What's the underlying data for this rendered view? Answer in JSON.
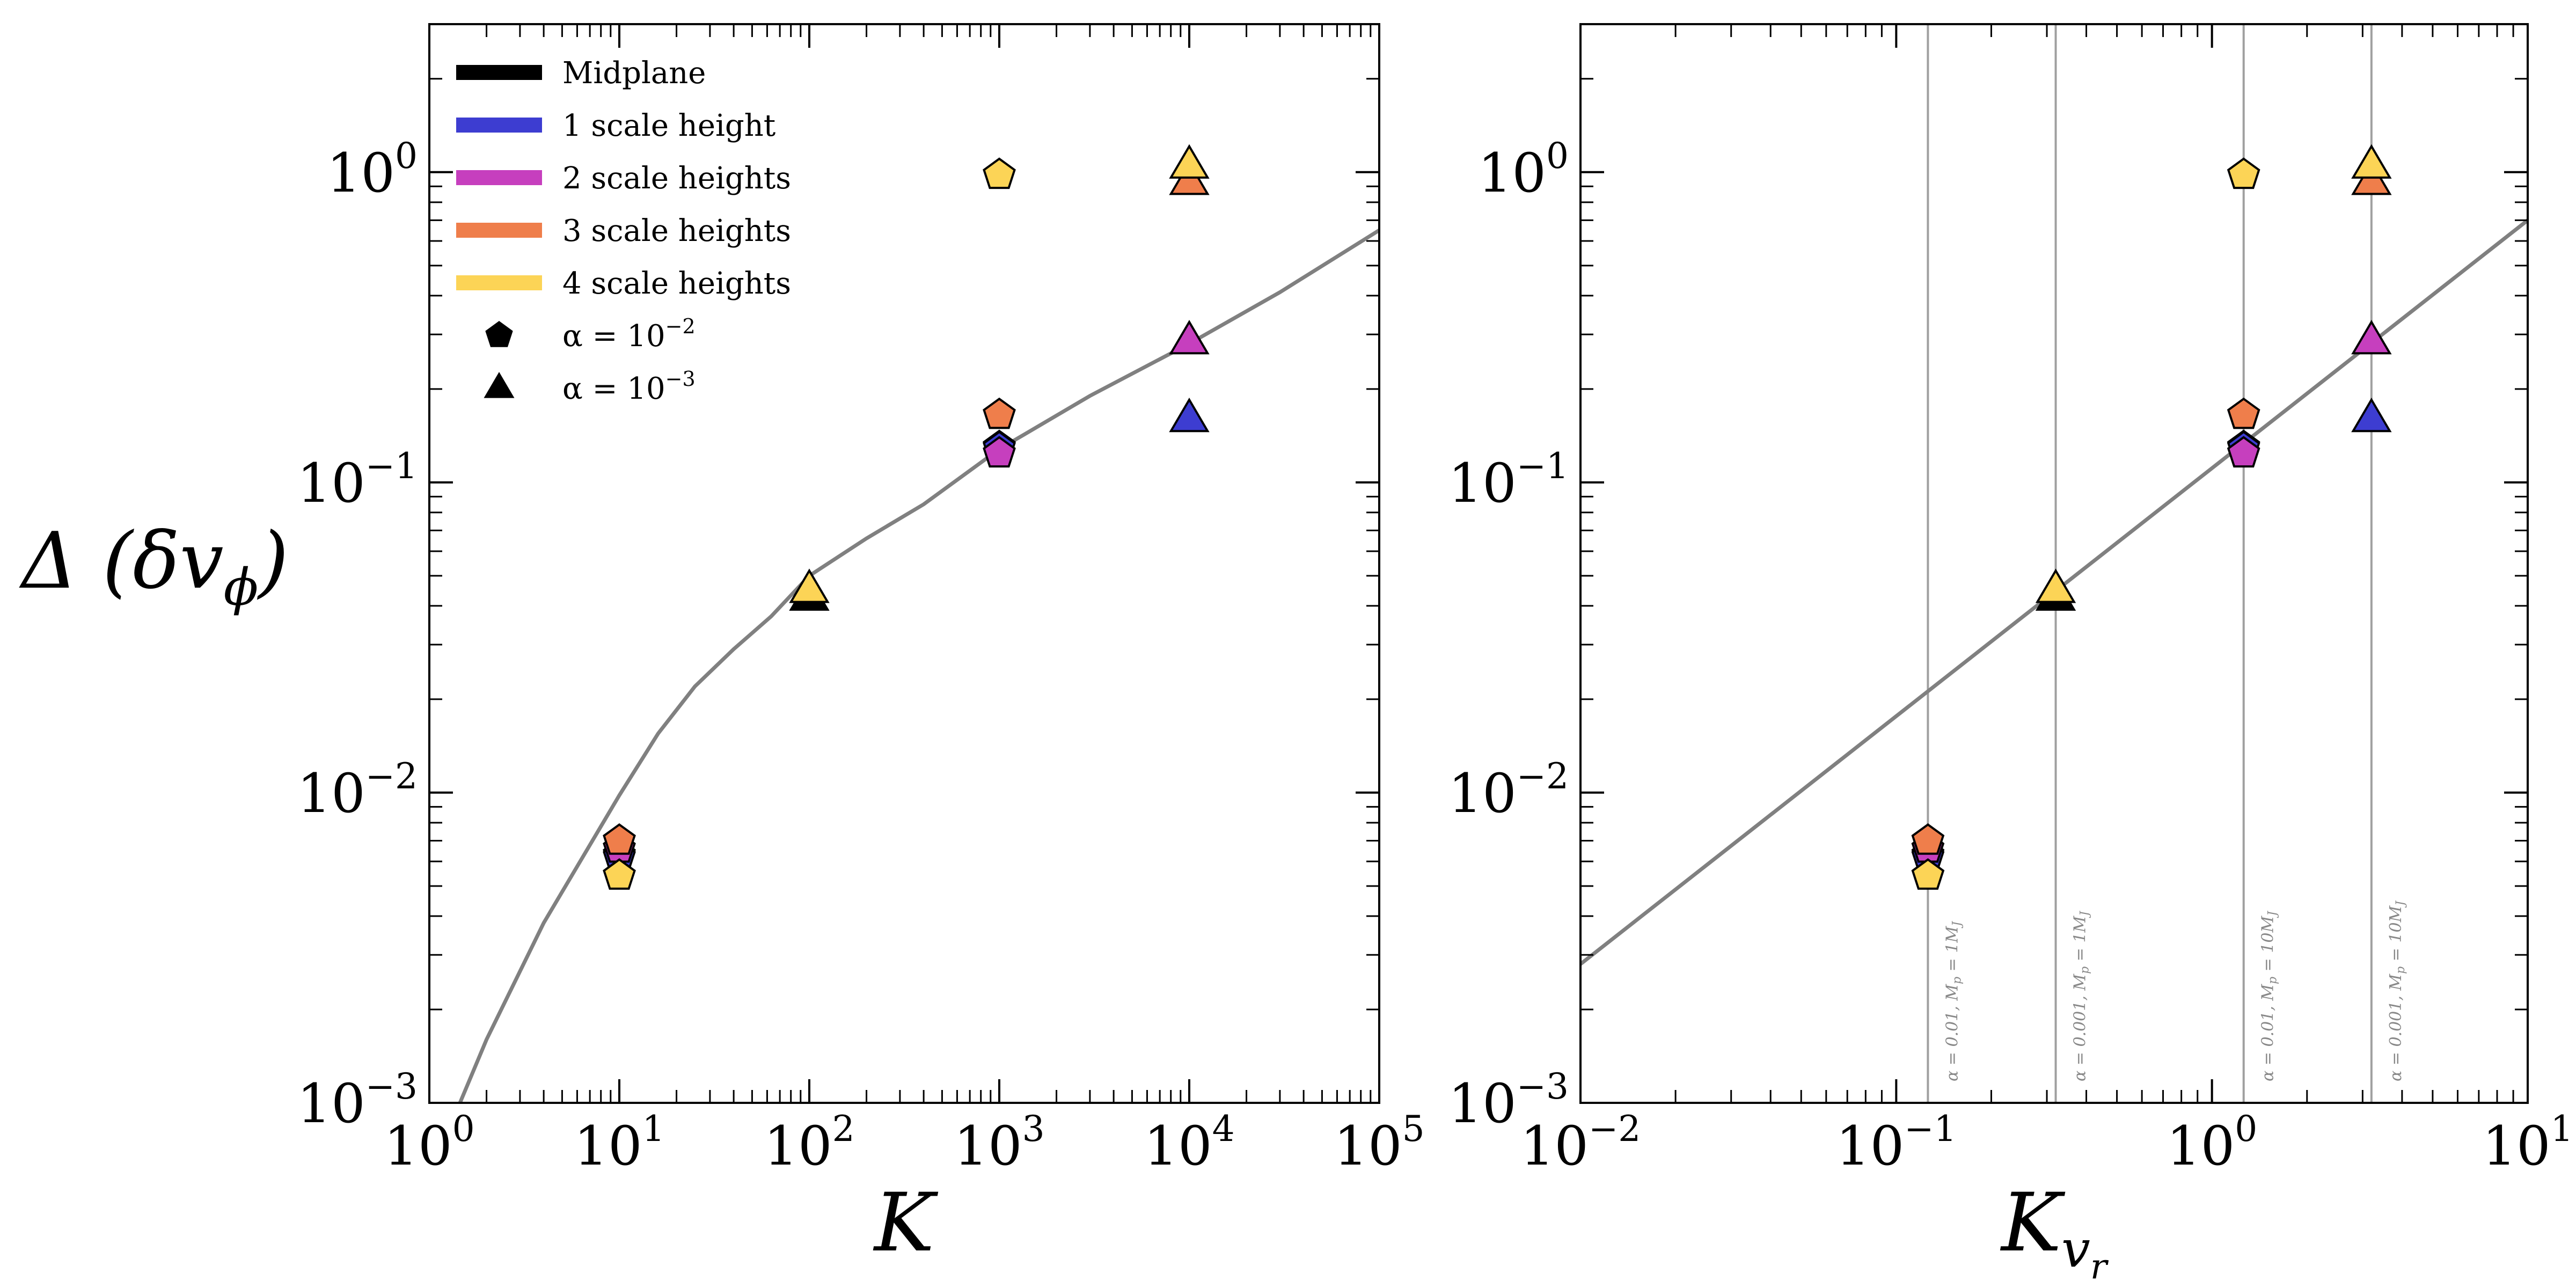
{
  "chart_data": [
    {
      "type": "scatter",
      "panel": "left",
      "xscale": "log",
      "yscale": "log",
      "xlim": [
        1,
        100000
      ],
      "ylim": [
        0.001,
        3
      ],
      "xticks": [
        {
          "base": "10",
          "exp": "0",
          "value": 1
        },
        {
          "base": "10",
          "exp": "1",
          "value": 10
        },
        {
          "base": "10",
          "exp": "2",
          "value": 100
        },
        {
          "base": "10",
          "exp": "3",
          "value": 1000
        },
        {
          "base": "10",
          "exp": "4",
          "value": 10000
        },
        {
          "base": "10",
          "exp": "5",
          "value": 100000
        }
      ],
      "yticks": [
        {
          "base": "10",
          "exp": "−3",
          "value": 0.001
        },
        {
          "base": "10",
          "exp": "−2",
          "value": 0.01
        },
        {
          "base": "10",
          "exp": "−1",
          "value": 0.1
        },
        {
          "base": "10",
          "exp": "0",
          "value": 1
        }
      ],
      "xlabel": "K",
      "ylabel": "Δ (δv",
      "ylabel_sub": "ϕ",
      "ylabel_close": ")",
      "legend": {
        "location": "upper-left",
        "entries": [
          {
            "kind": "line",
            "label": "Midplane",
            "color": "#000000"
          },
          {
            "kind": "line",
            "label": "1 scale height",
            "color": "#3d3dd1"
          },
          {
            "kind": "line",
            "label": "2 scale heights",
            "color": "#c63fbe"
          },
          {
            "kind": "line",
            "label": "3 scale heights",
            "color": "#ef7e4b"
          },
          {
            "kind": "line",
            "label": "4 scale heights",
            "color": "#fcd456"
          },
          {
            "kind": "pentagon",
            "label": "α  =  10",
            "sup": "−2",
            "color": "#000000"
          },
          {
            "kind": "triangle",
            "label": "α  =  10",
            "sup": "−3",
            "color": "#000000"
          }
        ]
      },
      "curve": {
        "name": "model-curve",
        "color": "#808080",
        "points": [
          [
            1.45,
            0.001
          ],
          [
            2,
            0.0016
          ],
          [
            4,
            0.0038
          ],
          [
            10,
            0.0098
          ],
          [
            16,
            0.0155
          ],
          [
            25,
            0.022
          ],
          [
            40,
            0.029
          ],
          [
            63,
            0.037
          ],
          [
            100,
            0.05
          ],
          [
            200,
            0.066
          ],
          [
            400,
            0.085
          ],
          [
            1000,
            0.128
          ],
          [
            3000,
            0.19
          ],
          [
            10000,
            0.28
          ],
          [
            30000,
            0.41
          ],
          [
            100000,
            0.65
          ]
        ]
      },
      "points": [
        {
          "name": "midplane-alpha-1e-2",
          "x": 10,
          "y": 0.0063,
          "marker": "pentagon",
          "color": "#000000"
        },
        {
          "name": "1h-alpha-1e-2",
          "x": 10,
          "y": 0.0062,
          "marker": "pentagon",
          "color": "#3d3dd1"
        },
        {
          "name": "2h-alpha-1e-2",
          "x": 10,
          "y": 0.0066,
          "marker": "pentagon",
          "color": "#c63fbe"
        },
        {
          "name": "3h-alpha-1e-2",
          "x": 10,
          "y": 0.007,
          "marker": "pentagon",
          "color": "#ef7e4b"
        },
        {
          "name": "4h-alpha-1e-2",
          "x": 10,
          "y": 0.0054,
          "marker": "pentagon",
          "color": "#fcd456"
        },
        {
          "name": "midplane-alpha-1e-3",
          "x": 100,
          "y": 0.0425,
          "marker": "triangle",
          "color": "#000000"
        },
        {
          "name": "4h-alpha-1e-3",
          "x": 100,
          "y": 0.045,
          "marker": "triangle",
          "color": "#fcd456"
        },
        {
          "name": "midplane-alpha-1e-2",
          "x": 1000,
          "y": 0.13,
          "marker": "pentagon",
          "color": "#000000"
        },
        {
          "name": "1h-alpha-1e-2",
          "x": 1000,
          "y": 0.129,
          "marker": "pentagon",
          "color": "#3d3dd1"
        },
        {
          "name": "3h-alpha-1e-2",
          "x": 1000,
          "y": 0.165,
          "marker": "pentagon",
          "color": "#ef7e4b"
        },
        {
          "name": "2h-alpha-1e-2",
          "x": 1000,
          "y": 0.124,
          "marker": "pentagon",
          "color": "#c63fbe"
        },
        {
          "name": "4h-alpha-1e-2",
          "x": 1000,
          "y": 0.98,
          "marker": "pentagon",
          "color": "#fcd456"
        },
        {
          "name": "1h-alpha-1e-3",
          "x": 10000,
          "y": 0.16,
          "marker": "triangle",
          "color": "#3d3dd1"
        },
        {
          "name": "2h-alpha-1e-3",
          "x": 10000,
          "y": 0.285,
          "marker": "triangle",
          "color": "#c63fbe"
        },
        {
          "name": "3h-alpha-1e-3",
          "x": 10000,
          "y": 0.93,
          "marker": "triangle",
          "color": "#ef7e4b"
        },
        {
          "name": "4h-alpha-1e-3",
          "x": 10000,
          "y": 1.05,
          "marker": "triangle",
          "color": "#fcd456"
        }
      ]
    },
    {
      "type": "scatter",
      "panel": "right",
      "xscale": "log",
      "yscale": "log",
      "xlim": [
        0.01,
        10
      ],
      "ylim": [
        0.001,
        3
      ],
      "xticks": [
        {
          "base": "10",
          "exp": "−2",
          "value": 0.01
        },
        {
          "base": "10",
          "exp": "−1",
          "value": 0.1
        },
        {
          "base": "10",
          "exp": "0",
          "value": 1
        },
        {
          "base": "10",
          "exp": "1",
          "value": 10
        }
      ],
      "yticks": [
        {
          "base": "10",
          "exp": "−3",
          "value": 0.001
        },
        {
          "base": "10",
          "exp": "−2",
          "value": 0.01
        },
        {
          "base": "10",
          "exp": "−1",
          "value": 0.1
        },
        {
          "base": "10",
          "exp": "0",
          "value": 1
        }
      ],
      "xlabel": "K",
      "xlabel_sub": "v",
      "xlabel_subsub": "r",
      "curve": {
        "name": "fit-line",
        "color": "#808080",
        "points": [
          [
            0.01,
            0.0028
          ],
          [
            10,
            0.7
          ]
        ]
      },
      "vlines": [
        {
          "x": 0.126,
          "label": "α = 0.01, M",
          "sub": "p",
          "label_end": " = 1M",
          "sub_end": "J"
        },
        {
          "x": 0.32,
          "label": "α = 0.001, M",
          "sub": "p",
          "label_end": " = 1M",
          "sub_end": "J"
        },
        {
          "x": 1.26,
          "label": "α = 0.01, M",
          "sub": "p",
          "label_end": " = 10M",
          "sub_end": "J"
        },
        {
          "x": 3.2,
          "label": "α = 0.001, M",
          "sub": "p",
          "label_end": " = 10M",
          "sub_end": "J"
        }
      ],
      "points": [
        {
          "name": "midplane-alpha-1e-2",
          "x": 0.126,
          "y": 0.0063,
          "marker": "pentagon",
          "color": "#000000"
        },
        {
          "name": "1h-alpha-1e-2",
          "x": 0.126,
          "y": 0.0062,
          "marker": "pentagon",
          "color": "#3d3dd1"
        },
        {
          "name": "2h-alpha-1e-2",
          "x": 0.126,
          "y": 0.0066,
          "marker": "pentagon",
          "color": "#c63fbe"
        },
        {
          "name": "3h-alpha-1e-2",
          "x": 0.126,
          "y": 0.007,
          "marker": "pentagon",
          "color": "#ef7e4b"
        },
        {
          "name": "4h-alpha-1e-2",
          "x": 0.126,
          "y": 0.0054,
          "marker": "pentagon",
          "color": "#fcd456"
        },
        {
          "name": "midplane-alpha-1e-3",
          "x": 0.32,
          "y": 0.0425,
          "marker": "triangle",
          "color": "#000000"
        },
        {
          "name": "4h-alpha-1e-3",
          "x": 0.32,
          "y": 0.045,
          "marker": "triangle",
          "color": "#fcd456"
        },
        {
          "name": "midplane-alpha-1e-2",
          "x": 1.26,
          "y": 0.13,
          "marker": "pentagon",
          "color": "#000000"
        },
        {
          "name": "1h-alpha-1e-2",
          "x": 1.26,
          "y": 0.129,
          "marker": "pentagon",
          "color": "#3d3dd1"
        },
        {
          "name": "3h-alpha-1e-2",
          "x": 1.26,
          "y": 0.165,
          "marker": "pentagon",
          "color": "#ef7e4b"
        },
        {
          "name": "2h-alpha-1e-2",
          "x": 1.26,
          "y": 0.124,
          "marker": "pentagon",
          "color": "#c63fbe"
        },
        {
          "name": "4h-alpha-1e-2",
          "x": 1.26,
          "y": 0.98,
          "marker": "pentagon",
          "color": "#fcd456"
        },
        {
          "name": "1h-alpha-1e-3",
          "x": 3.2,
          "y": 0.16,
          "marker": "triangle",
          "color": "#3d3dd1"
        },
        {
          "name": "2h-alpha-1e-3",
          "x": 3.2,
          "y": 0.285,
          "marker": "triangle",
          "color": "#c63fbe"
        },
        {
          "name": "3h-alpha-1e-3",
          "x": 3.2,
          "y": 0.93,
          "marker": "triangle",
          "color": "#ef7e4b"
        },
        {
          "name": "4h-alpha-1e-3",
          "x": 3.2,
          "y": 1.05,
          "marker": "triangle",
          "color": "#fcd456"
        }
      ]
    }
  ]
}
